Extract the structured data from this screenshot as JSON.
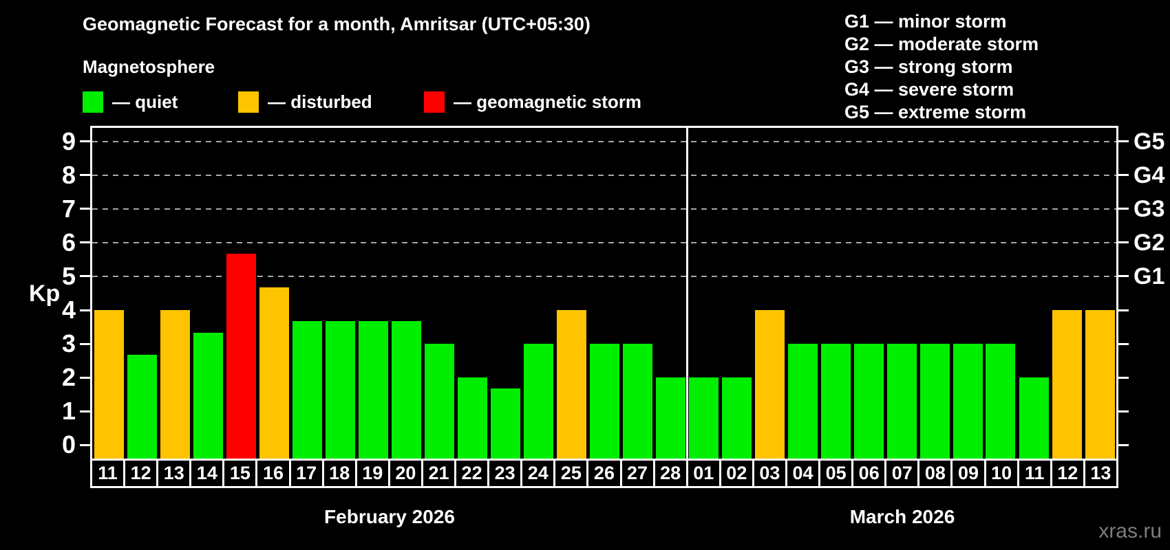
{
  "header": {
    "title": "Geomagnetic Forecast for a month, Amritsar (UTC+05:30)",
    "subtitle": "Magnetosphere"
  },
  "legend": {
    "items": [
      {
        "label": "— quiet",
        "status": "quiet"
      },
      {
        "label": "— disturbed",
        "status": "disturbed"
      },
      {
        "label": "— geomagnetic storm",
        "status": "storm"
      }
    ]
  },
  "g_scale_legend": [
    "G1 — minor storm",
    "G2 — moderate storm",
    "G3 — strong storm",
    "G4 — severe storm",
    "G5 — extreme storm"
  ],
  "watermark": "xras.ru",
  "colors": {
    "quiet": "#00ee00",
    "disturbed": "#ffc400",
    "storm": "#ff0000",
    "grid": "#a8a8a8",
    "axis": "#ffffff",
    "background": "#000000",
    "watermark": "#7d7d7d"
  },
  "chart_data": {
    "type": "bar",
    "title": "Geomagnetic Forecast for a month, Amritsar (UTC+05:30)",
    "subtitle": "Magnetosphere",
    "ylabel": "Kp",
    "ylim": [
      -0.4,
      9.4
    ],
    "yticks": [
      0,
      1,
      2,
      3,
      4,
      5,
      6,
      7,
      8,
      9
    ],
    "gridlines_at": [
      5,
      6,
      7,
      8,
      9
    ],
    "grid": "dashed-horizontal",
    "legend_position": "top",
    "right_axis": [
      {
        "label": "G1",
        "kp": 5
      },
      {
        "label": "G2",
        "kp": 6
      },
      {
        "label": "G3",
        "kp": 7
      },
      {
        "label": "G4",
        "kp": 8
      },
      {
        "label": "G5",
        "kp": 9
      }
    ],
    "months": [
      {
        "label": "February 2026",
        "days": 18
      },
      {
        "label": "March 2026",
        "days": 13
      }
    ],
    "bars": [
      {
        "day": "11",
        "month": "February",
        "kp": 4.0,
        "status": "disturbed"
      },
      {
        "day": "12",
        "month": "February",
        "kp": 2.67,
        "status": "quiet"
      },
      {
        "day": "13",
        "month": "February",
        "kp": 4.0,
        "status": "disturbed"
      },
      {
        "day": "14",
        "month": "February",
        "kp": 3.33,
        "status": "quiet"
      },
      {
        "day": "15",
        "month": "February",
        "kp": 5.67,
        "status": "storm"
      },
      {
        "day": "16",
        "month": "February",
        "kp": 4.67,
        "status": "disturbed"
      },
      {
        "day": "17",
        "month": "February",
        "kp": 3.67,
        "status": "quiet"
      },
      {
        "day": "18",
        "month": "February",
        "kp": 3.67,
        "status": "quiet"
      },
      {
        "day": "19",
        "month": "February",
        "kp": 3.67,
        "status": "quiet"
      },
      {
        "day": "20",
        "month": "February",
        "kp": 3.67,
        "status": "quiet"
      },
      {
        "day": "21",
        "month": "February",
        "kp": 3.0,
        "status": "quiet"
      },
      {
        "day": "22",
        "month": "February",
        "kp": 2.0,
        "status": "quiet"
      },
      {
        "day": "23",
        "month": "February",
        "kp": 1.67,
        "status": "quiet"
      },
      {
        "day": "24",
        "month": "February",
        "kp": 3.0,
        "status": "quiet"
      },
      {
        "day": "25",
        "month": "February",
        "kp": 4.0,
        "status": "disturbed"
      },
      {
        "day": "26",
        "month": "February",
        "kp": 3.0,
        "status": "quiet"
      },
      {
        "day": "27",
        "month": "February",
        "kp": 3.0,
        "status": "quiet"
      },
      {
        "day": "28",
        "month": "February",
        "kp": 2.0,
        "status": "quiet"
      },
      {
        "day": "01",
        "month": "March",
        "kp": 2.0,
        "status": "quiet"
      },
      {
        "day": "02",
        "month": "March",
        "kp": 2.0,
        "status": "quiet"
      },
      {
        "day": "03",
        "month": "March",
        "kp": 4.0,
        "status": "disturbed"
      },
      {
        "day": "04",
        "month": "March",
        "kp": 3.0,
        "status": "quiet"
      },
      {
        "day": "05",
        "month": "March",
        "kp": 3.0,
        "status": "quiet"
      },
      {
        "day": "06",
        "month": "March",
        "kp": 3.0,
        "status": "quiet"
      },
      {
        "day": "07",
        "month": "March",
        "kp": 3.0,
        "status": "quiet"
      },
      {
        "day": "08",
        "month": "March",
        "kp": 3.0,
        "status": "quiet"
      },
      {
        "day": "09",
        "month": "March",
        "kp": 3.0,
        "status": "quiet"
      },
      {
        "day": "10",
        "month": "March",
        "kp": 3.0,
        "status": "quiet"
      },
      {
        "day": "11",
        "month": "March",
        "kp": 2.0,
        "status": "quiet"
      },
      {
        "day": "12",
        "month": "March",
        "kp": 4.0,
        "status": "disturbed"
      },
      {
        "day": "13",
        "month": "March",
        "kp": 4.0,
        "status": "disturbed"
      }
    ]
  }
}
